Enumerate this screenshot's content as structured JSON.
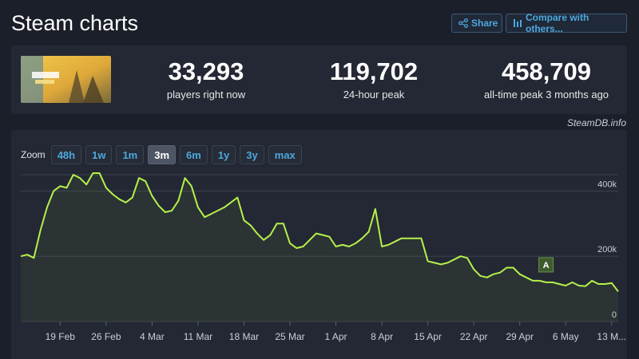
{
  "header": {
    "title": "Steam charts",
    "share_label": "Share",
    "compare_label": "Compare with others..."
  },
  "stats": {
    "current": {
      "value": "33,293",
      "label": "players right now"
    },
    "peak_24h": {
      "value": "119,702",
      "label": "24-hour peak"
    },
    "all_time": {
      "value": "458,709",
      "label": "all-time peak 3 months ago"
    }
  },
  "credit": "SteamDB.info",
  "zoom": {
    "label": "Zoom",
    "options": [
      "48h",
      "1w",
      "1m",
      "3m",
      "6m",
      "1y",
      "3y",
      "max"
    ],
    "active": "3m"
  },
  "colors": {
    "line": "#b6f04a",
    "accent": "#4ea8de",
    "panel": "#232834",
    "background": "#1b1f2a"
  },
  "chart_data": {
    "type": "area",
    "title": "",
    "xlabel": "",
    "ylabel": "",
    "ylim": [
      0,
      450000
    ],
    "y_ticks": [
      0,
      200000,
      400000
    ],
    "y_tick_labels": [
      "0",
      "200k",
      "400k"
    ],
    "x_tick_labels": [
      "19 Feb",
      "26 Feb",
      "4 Mar",
      "11 Mar",
      "18 Mar",
      "25 Mar",
      "1 Apr",
      "8 Apr",
      "15 Apr",
      "22 Apr",
      "29 Apr",
      "6 May",
      "13 M..."
    ],
    "x_tick_days": [
      6,
      13,
      20,
      27,
      34,
      41,
      48,
      55,
      62,
      69,
      76,
      83,
      90
    ],
    "grid": true,
    "annotation": {
      "label": "A",
      "day": 80
    },
    "series": [
      {
        "points": [
          [
            0,
            200000
          ],
          [
            1,
            205000
          ],
          [
            2,
            195000
          ],
          [
            3,
            280000
          ],
          [
            4,
            350000
          ],
          [
            5,
            400000
          ],
          [
            6,
            415000
          ],
          [
            7,
            410000
          ],
          [
            8,
            450000
          ],
          [
            9,
            440000
          ],
          [
            10,
            420000
          ],
          [
            11,
            455000
          ],
          [
            12,
            455000
          ],
          [
            13,
            410000
          ],
          [
            14,
            390000
          ],
          [
            15,
            375000
          ],
          [
            16,
            365000
          ],
          [
            17,
            380000
          ],
          [
            18,
            440000
          ],
          [
            19,
            430000
          ],
          [
            20,
            385000
          ],
          [
            21,
            355000
          ],
          [
            22,
            335000
          ],
          [
            23,
            340000
          ],
          [
            24,
            370000
          ],
          [
            25,
            440000
          ],
          [
            26,
            415000
          ],
          [
            27,
            350000
          ],
          [
            28,
            320000
          ],
          [
            29,
            330000
          ],
          [
            30,
            340000
          ],
          [
            31,
            350000
          ],
          [
            32,
            365000
          ],
          [
            33,
            380000
          ],
          [
            34,
            310000
          ],
          [
            35,
            295000
          ],
          [
            36,
            270000
          ],
          [
            37,
            250000
          ],
          [
            38,
            265000
          ],
          [
            39,
            300000
          ],
          [
            40,
            300000
          ],
          [
            41,
            240000
          ],
          [
            42,
            225000
          ],
          [
            43,
            230000
          ],
          [
            44,
            250000
          ],
          [
            45,
            270000
          ],
          [
            46,
            265000
          ],
          [
            47,
            260000
          ],
          [
            48,
            230000
          ],
          [
            49,
            235000
          ],
          [
            50,
            230000
          ],
          [
            51,
            240000
          ],
          [
            52,
            255000
          ],
          [
            53,
            275000
          ],
          [
            54,
            345000
          ],
          [
            55,
            230000
          ],
          [
            56,
            235000
          ],
          [
            57,
            245000
          ],
          [
            58,
            255000
          ],
          [
            59,
            255000
          ],
          [
            60,
            255000
          ],
          [
            61,
            255000
          ],
          [
            62,
            185000
          ],
          [
            63,
            180000
          ],
          [
            64,
            175000
          ],
          [
            65,
            180000
          ],
          [
            66,
            190000
          ],
          [
            67,
            200000
          ],
          [
            68,
            195000
          ],
          [
            69,
            160000
          ],
          [
            70,
            140000
          ],
          [
            71,
            135000
          ],
          [
            72,
            145000
          ],
          [
            73,
            150000
          ],
          [
            74,
            165000
          ],
          [
            75,
            165000
          ],
          [
            76,
            145000
          ],
          [
            77,
            135000
          ],
          [
            78,
            125000
          ],
          [
            79,
            125000
          ],
          [
            80,
            120000
          ],
          [
            81,
            120000
          ],
          [
            82,
            115000
          ],
          [
            83,
            110000
          ],
          [
            84,
            120000
          ],
          [
            85,
            110000
          ],
          [
            86,
            108000
          ],
          [
            87,
            125000
          ],
          [
            88,
            115000
          ],
          [
            89,
            115000
          ],
          [
            90,
            118000
          ],
          [
            91,
            92000
          ]
        ]
      }
    ]
  }
}
